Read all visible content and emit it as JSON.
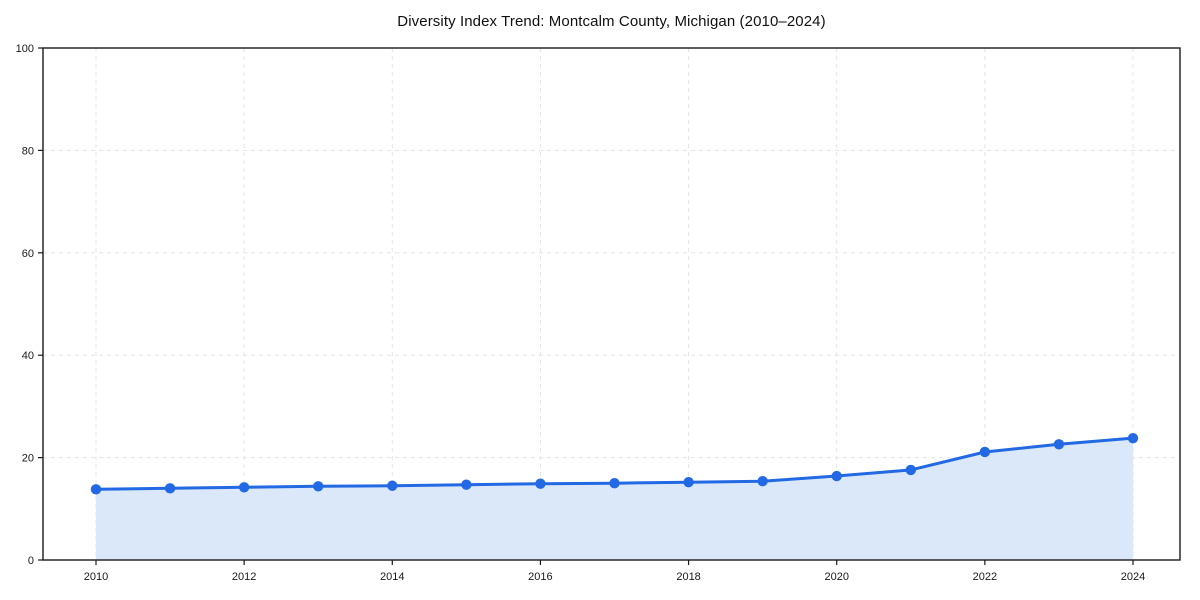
{
  "chart_data": {
    "type": "line",
    "title": "Diversity Index Trend: Montcalm County, Michigan (2010–2024)",
    "xlabel": "",
    "ylabel": "",
    "x": [
      2010,
      2011,
      2012,
      2013,
      2014,
      2015,
      2016,
      2017,
      2018,
      2019,
      2020,
      2021,
      2022,
      2023,
      2024
    ],
    "series": [
      {
        "name": "Diversity Index",
        "values": [
          13.8,
          14.0,
          14.2,
          14.4,
          14.5,
          14.7,
          14.9,
          15.0,
          15.2,
          15.4,
          16.4,
          17.6,
          21.1,
          22.6,
          23.8
        ]
      }
    ],
    "ylim": [
      0,
      100
    ],
    "yticks": [
      0,
      20,
      40,
      60,
      80,
      100
    ],
    "xticks": [
      2010,
      2012,
      2014,
      2016,
      2018,
      2020,
      2022,
      2024
    ],
    "grid": true,
    "grid_style": "dashed",
    "legend_position": "none",
    "area_fill": true,
    "marker": "circle",
    "colors": {
      "line": "#2269e3",
      "marker": "#2269e3",
      "area": "#dbe8fa",
      "grid": "#e4e4e4",
      "spine": "#1a1a1a",
      "background": "#ffffff",
      "text": "#1a1a1a"
    }
  }
}
